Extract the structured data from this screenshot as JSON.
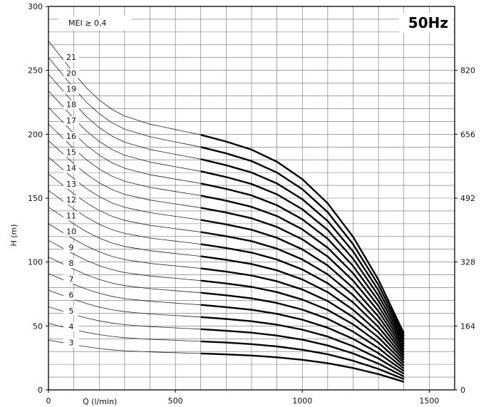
{
  "chart_data": {
    "type": "line",
    "badge": "50Hz",
    "note": "MEI ≥ 0,4",
    "xlabel": "Q (l/min)",
    "ylabel": "H (m)",
    "xlim": [
      0,
      1600
    ],
    "ylim": [
      0,
      300
    ],
    "x_ticks": [
      "0",
      "500",
      "1000",
      "1500"
    ],
    "y_ticks": [
      "0",
      "50",
      "100",
      "150",
      "200",
      "250",
      "300"
    ],
    "y2_ticks": [
      "0",
      "164",
      "328",
      "492",
      "656",
      "820"
    ],
    "y2_tick_positions_m": [
      0,
      50,
      100,
      150,
      200,
      250
    ],
    "grid": true,
    "operating_range": [
      600,
      1400
    ],
    "series_shape": {
      "q": [
        0,
        50,
        100,
        150,
        200,
        250,
        300,
        350,
        400,
        450,
        500,
        550,
        600,
        700,
        800,
        900,
        1000,
        1100,
        1200,
        1300,
        1400
      ],
      "head_per_stage": [
        13.0,
        12.4,
        11.8,
        11.25,
        10.8,
        10.45,
        10.2,
        10.05,
        9.9,
        9.8,
        9.7,
        9.6,
        9.5,
        9.25,
        8.95,
        8.5,
        7.85,
        6.95,
        5.7,
        4.1,
        2.1
      ]
    },
    "series": [
      {
        "name": "3",
        "stages": 3
      },
      {
        "name": "4",
        "stages": 4
      },
      {
        "name": "5",
        "stages": 5
      },
      {
        "name": "6",
        "stages": 6
      },
      {
        "name": "7",
        "stages": 7
      },
      {
        "name": "8",
        "stages": 8
      },
      {
        "name": "9",
        "stages": 9
      },
      {
        "name": "10",
        "stages": 10
      },
      {
        "name": "11",
        "stages": 11
      },
      {
        "name": "12",
        "stages": 12
      },
      {
        "name": "13",
        "stages": 13
      },
      {
        "name": "14",
        "stages": 14
      },
      {
        "name": "15",
        "stages": 15
      },
      {
        "name": "16",
        "stages": 16
      },
      {
        "name": "17",
        "stages": 17
      },
      {
        "name": "18",
        "stages": 18
      },
      {
        "name": "19",
        "stages": 19
      },
      {
        "name": "20",
        "stages": 20
      },
      {
        "name": "21",
        "stages": 21
      }
    ]
  }
}
